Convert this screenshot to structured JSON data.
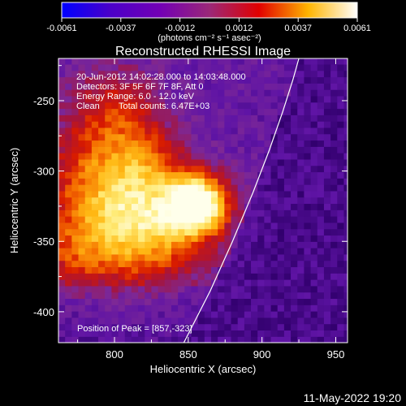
{
  "chart_data": {
    "type": "heatmap",
    "title": "Reconstructed RHESSI Image",
    "xlabel": "Heliocentric X (arcsec)",
    "ylabel": "Heliocentric Y (arcsec)",
    "xlim": [
      762,
      958
    ],
    "ylim": [
      -422,
      -220
    ],
    "x_ticks": [
      800,
      850,
      900,
      950
    ],
    "y_ticks": [
      -250,
      -300,
      -350,
      -400
    ],
    "colorbar": {
      "min": -0.0061,
      "max": 0.0061,
      "ticks": [
        "-0.0061",
        "-0.0037",
        "-0.0012",
        "0.0012",
        "0.0037",
        "0.0061"
      ],
      "unit_label": "(photons cm⁻² s⁻¹ asec⁻²)",
      "colors": [
        "#0000ff",
        "#4b00c8",
        "#7300b4",
        "#9b2878",
        "#e10000",
        "#ffb400",
        "#ffffff"
      ]
    },
    "annotations": {
      "time_range": "20-Jun-2012 14:02:28.000 to 14:03:48.000",
      "detectors": "Detectors: 3F 5F 6F 7F 8F, Att 0",
      "energy": "Energy Range: 6.0 - 12.0 keV",
      "clean_label": "Clean",
      "total_counts": "Total counts: 6.47E+03",
      "peak_position": "Position of Peak = [857,-323]"
    },
    "peak": [
      857,
      -323
    ],
    "limb": [
      [
        847,
        -422
      ],
      [
        865,
        -385
      ],
      [
        880,
        -350
      ],
      [
        894,
        -315
      ],
      [
        905,
        -285
      ],
      [
        914,
        -258
      ],
      [
        921,
        -235
      ],
      [
        925,
        -220
      ]
    ]
  },
  "footer": {
    "date": "11-May-2022 19:20"
  }
}
